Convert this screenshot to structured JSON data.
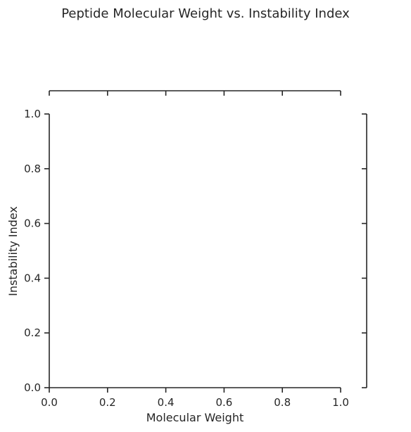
{
  "chart_data": {
    "type": "scatter",
    "title": "Peptide Molecular Weight vs. Instability Index",
    "xlabel": "Molecular Weight",
    "ylabel": "Instability Index",
    "xlim": [
      0.0,
      1.0
    ],
    "ylim": [
      0.0,
      1.0
    ],
    "x_ticks": [
      "0.0",
      "0.2",
      "0.4",
      "0.6",
      "0.8",
      "1.0"
    ],
    "y_ticks": [
      "0.0",
      "0.2",
      "0.4",
      "0.6",
      "0.8",
      "1.0"
    ],
    "grid": false,
    "legend": "none",
    "marginal_plots": "top and right (empty)",
    "series": [
      {
        "x": [],
        "y": []
      }
    ]
  }
}
